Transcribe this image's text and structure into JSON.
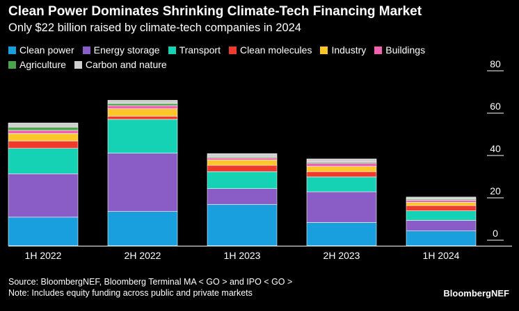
{
  "chart_data": {
    "type": "bar",
    "stacked": true,
    "title": "Clean Power Dominates Shrinking Climate-Tech Financing Market",
    "subtitle": "Only $22 billion raised by climate-tech companies in 2024",
    "categories": [
      "1H 2022",
      "2H 2022",
      "1H 2023",
      "2H 2023",
      "1H 2024"
    ],
    "ylim": [
      0,
      80
    ],
    "yticks": [
      0,
      20,
      40,
      60,
      80
    ],
    "y_axis_side": "right",
    "grid": false,
    "legend_position": "top-left",
    "series": [
      {
        "name": "Clean power",
        "color": "#1a9fde",
        "values": [
          13.5,
          16.2,
          19.5,
          11.0,
          7.0
        ]
      },
      {
        "name": "Energy storage",
        "color": "#8a5cc6",
        "values": [
          20.5,
          27.5,
          7.5,
          14.5,
          5.0
        ]
      },
      {
        "name": "Transport",
        "color": "#16d2b4",
        "values": [
          12.0,
          16.0,
          8.0,
          7.0,
          4.5
        ]
      },
      {
        "name": "Clean molecules",
        "color": "#ef3b2c",
        "values": [
          3.5,
          1.5,
          3.0,
          2.5,
          2.5
        ]
      },
      {
        "name": "Industry",
        "color": "#ffc629",
        "values": [
          3.5,
          3.5,
          2.5,
          2.5,
          1.5
        ]
      },
      {
        "name": "Buildings",
        "color": "#f062b0",
        "values": [
          1.5,
          1.5,
          1.0,
          1.5,
          1.0
        ]
      },
      {
        "name": "Agriculture",
        "color": "#4ba34b",
        "values": [
          1.5,
          1.0,
          0.5,
          0.5,
          0.5
        ]
      },
      {
        "name": "Carbon and nature",
        "color": "#cfcfcf",
        "values": [
          2.0,
          1.5,
          1.5,
          1.5,
          1.0
        ]
      }
    ]
  },
  "source_line": "Source: BloombergNEF, Bloomberg Terminal MA < GO > and IPO < GO >",
  "note_line": "Note: Includes equity funding across public and private markets",
  "brand": "BloombergNEF"
}
